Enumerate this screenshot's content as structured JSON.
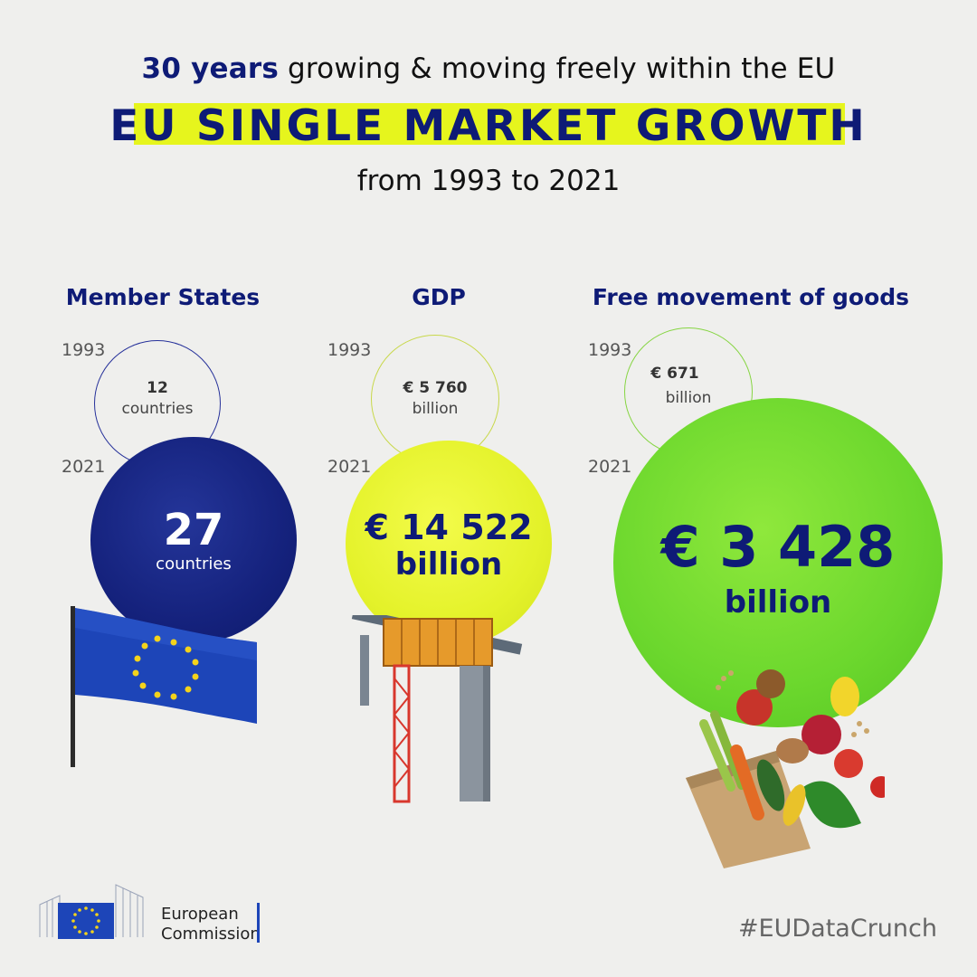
{
  "header": {
    "subtitle_bold": "30 years",
    "subtitle_rest": " growing & moving freely within the EU",
    "title": "EU SINGLE MARKET GROWTH",
    "years": "from 1993 to 2021"
  },
  "columns": [
    {
      "heading": "Member States",
      "year_small": "1993",
      "small_value": "12",
      "small_unit": "countries",
      "year_big": "2021",
      "big_value": "27",
      "big_unit": "countries"
    },
    {
      "heading": "GDP",
      "year_small": "1993",
      "small_value": "€ 5 760",
      "small_unit": "billion",
      "year_big": "2021",
      "big_value": "€ 14 522",
      "big_unit": "billion"
    },
    {
      "heading": "Free movement of goods",
      "year_small": "1993",
      "small_value": "€ 671",
      "small_unit": "billion",
      "year_big": "2021",
      "big_value": "€ 3 428",
      "big_unit": "billion"
    }
  ],
  "footer": {
    "org_line1": "European",
    "org_line2": "Commission",
    "hashtag": "#EUDataCrunch"
  },
  "colors": {
    "navy": "#0e1b76",
    "highlight_yellow": "#e6f51d",
    "gdp_yellow": "#e4f22a",
    "goods_green": "#6bd72d",
    "eu_flag_blue": "#1d45b8",
    "eu_star_yellow": "#f4d31b"
  },
  "icons": [
    "eu-flag-image",
    "crane-structure-image",
    "grocery-bag-image",
    "european-commission-logo"
  ]
}
